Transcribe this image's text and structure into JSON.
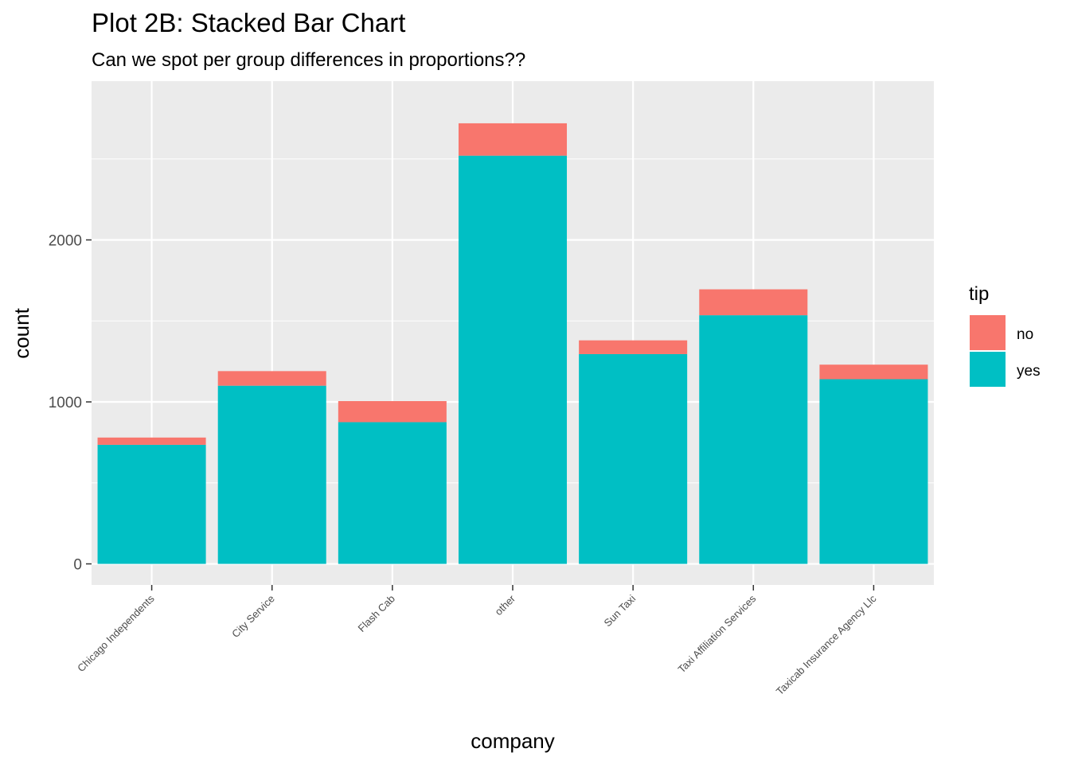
{
  "chart_data": {
    "type": "bar",
    "stacked": true,
    "title": "Plot 2B: Stacked Bar Chart",
    "subtitle": "Can we spot per group differences in proportions??",
    "xlabel": "company",
    "ylabel": "count",
    "ylim": [
      -130,
      2980
    ],
    "yticks": [
      0,
      1000,
      2000
    ],
    "grid": true,
    "legend_position": "right",
    "legend_title": "tip",
    "categories": [
      "Chicago Independents",
      "City Service",
      "Flash Cab",
      "other",
      "Sun Taxi",
      "Taxi Affiliation Services",
      "Taxicab Insurance Agency Llc"
    ],
    "series": [
      {
        "name": "no",
        "color": "#F8766D",
        "values": [
          45,
          90,
          130,
          200,
          85,
          160,
          90
        ]
      },
      {
        "name": "yes",
        "color": "#00BFC4",
        "values": [
          735,
          1100,
          875,
          2520,
          1295,
          1535,
          1140
        ]
      }
    ]
  }
}
